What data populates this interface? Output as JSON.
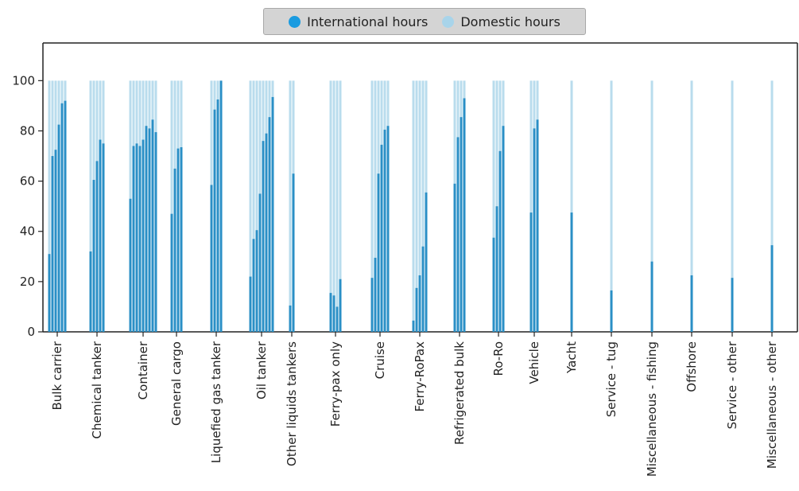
{
  "legend": {
    "international": "International hours",
    "domestic": "Domestic hours"
  },
  "colors": {
    "international": "#2a8fc6",
    "domestic": "#b9dced",
    "international_swatch": "#1a9be0",
    "domestic_swatch": "#a8d4ea"
  },
  "chart_data": {
    "type": "bar",
    "stacked": true,
    "percent_stacked": true,
    "title": "",
    "xlabel": "",
    "ylabel": "",
    "ylim": [
      0,
      115
    ],
    "yticks": [
      0,
      20,
      40,
      60,
      80,
      100
    ],
    "grid": false,
    "legend_position": "top-center",
    "categories": [
      "Bulk carrier",
      "Chemical tanker",
      "Container",
      "General cargo",
      "Liquefied gas tanker",
      "Oil tanker",
      "Other liquids tankers",
      "Ferry-pax only",
      "Cruise",
      "Ferry-RoPax",
      "Refrigerated bulk",
      "Ro-Ro",
      "Vehicle",
      "Yacht",
      "Service - tug",
      "Miscellaneous - fishing",
      "Offshore",
      "Service - other",
      "Miscellaneous - other"
    ],
    "series": [
      {
        "name": "International hours",
        "values": [
          [
            31,
            70,
            72.5,
            82.5,
            91,
            92
          ],
          [
            32,
            60.5,
            68,
            76.5,
            75
          ],
          [
            53,
            74,
            75,
            74,
            76.5,
            82,
            81,
            84.5,
            79.5
          ],
          [
            47,
            65,
            73,
            73.5
          ],
          [
            58.5,
            88.5,
            92.5,
            100
          ],
          [
            22,
            37,
            40.5,
            55,
            76,
            79,
            85.5,
            93.5
          ],
          [
            10.5,
            63
          ],
          [
            15.5,
            14.5,
            10,
            21
          ],
          [
            21.5,
            29.5,
            63,
            74.5,
            80.5,
            82
          ],
          [
            4.5,
            17.5,
            22.5,
            34,
            55.5
          ],
          [
            59,
            77.5,
            85.5,
            93
          ],
          [
            37.5,
            50,
            72,
            82
          ],
          [
            47.5,
            81,
            84.5
          ],
          [
            47.5
          ],
          [
            16.5
          ],
          [
            28
          ],
          [
            22.5
          ],
          [
            21.5
          ],
          [
            34.5
          ]
        ]
      },
      {
        "name": "Domestic hours",
        "values": [
          [
            69,
            30,
            27.5,
            17.5,
            9,
            8
          ],
          [
            68,
            39.5,
            32,
            23.5,
            25
          ],
          [
            47,
            26,
            25,
            26,
            23.5,
            18,
            19,
            15.5,
            20.5
          ],
          [
            53,
            35,
            27,
            26.5
          ],
          [
            41.5,
            11.5,
            7.5,
            0
          ],
          [
            78,
            63,
            59.5,
            45,
            24,
            21,
            14.5,
            6.5
          ],
          [
            89.5,
            37
          ],
          [
            84.5,
            85.5,
            90,
            79
          ],
          [
            78.5,
            70.5,
            37,
            25.5,
            19.5,
            18
          ],
          [
            95.5,
            82.5,
            77.5,
            66,
            44.5
          ],
          [
            41,
            22.5,
            14.5,
            7
          ],
          [
            62.5,
            50,
            28,
            18
          ],
          [
            52.5,
            19,
            15.5
          ],
          [
            52.5
          ],
          [
            83.5
          ],
          [
            72
          ],
          [
            77.5
          ],
          [
            78.5
          ],
          [
            65.5
          ]
        ]
      }
    ]
  }
}
